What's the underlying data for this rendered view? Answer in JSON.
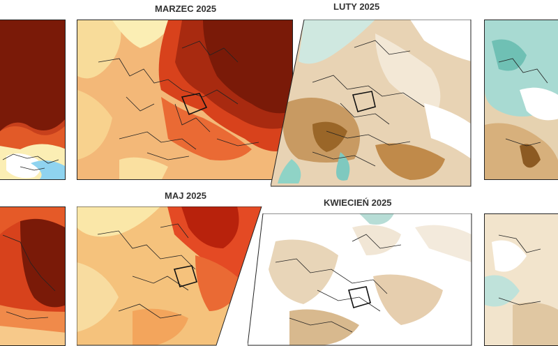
{
  "panels": {
    "march": {
      "title": "MARZEC 2025",
      "anomaly": "warm",
      "base": "#f0a060",
      "strong": "#7a1a08"
    },
    "february": {
      "title": "LUTY 2025",
      "anomaly": "dry",
      "base": "#d9b58a",
      "strong": "#9c6a2e"
    },
    "may": {
      "title": "MAJ 2025",
      "anomaly": "warm",
      "base": "#f3b073",
      "strong": "#b8220c"
    },
    "april": {
      "title": "KWIECIEŃ 2025",
      "anomaly": "dry",
      "base": "#f3eadc",
      "strong": "#c9a479"
    }
  },
  "colors": {
    "warm_dark": "#7a1a08",
    "warm_red": "#d43418",
    "warm_orange": "#f08a4a",
    "warm_light": "#f7d18a",
    "pale_yellow": "#fbeeb4",
    "cold_blue": "#8fd3ef",
    "dry_brown": "#b07a3a",
    "dry_tan": "#dcbf95",
    "wet_teal": "#7fc9bf",
    "border_line": "#222222"
  }
}
